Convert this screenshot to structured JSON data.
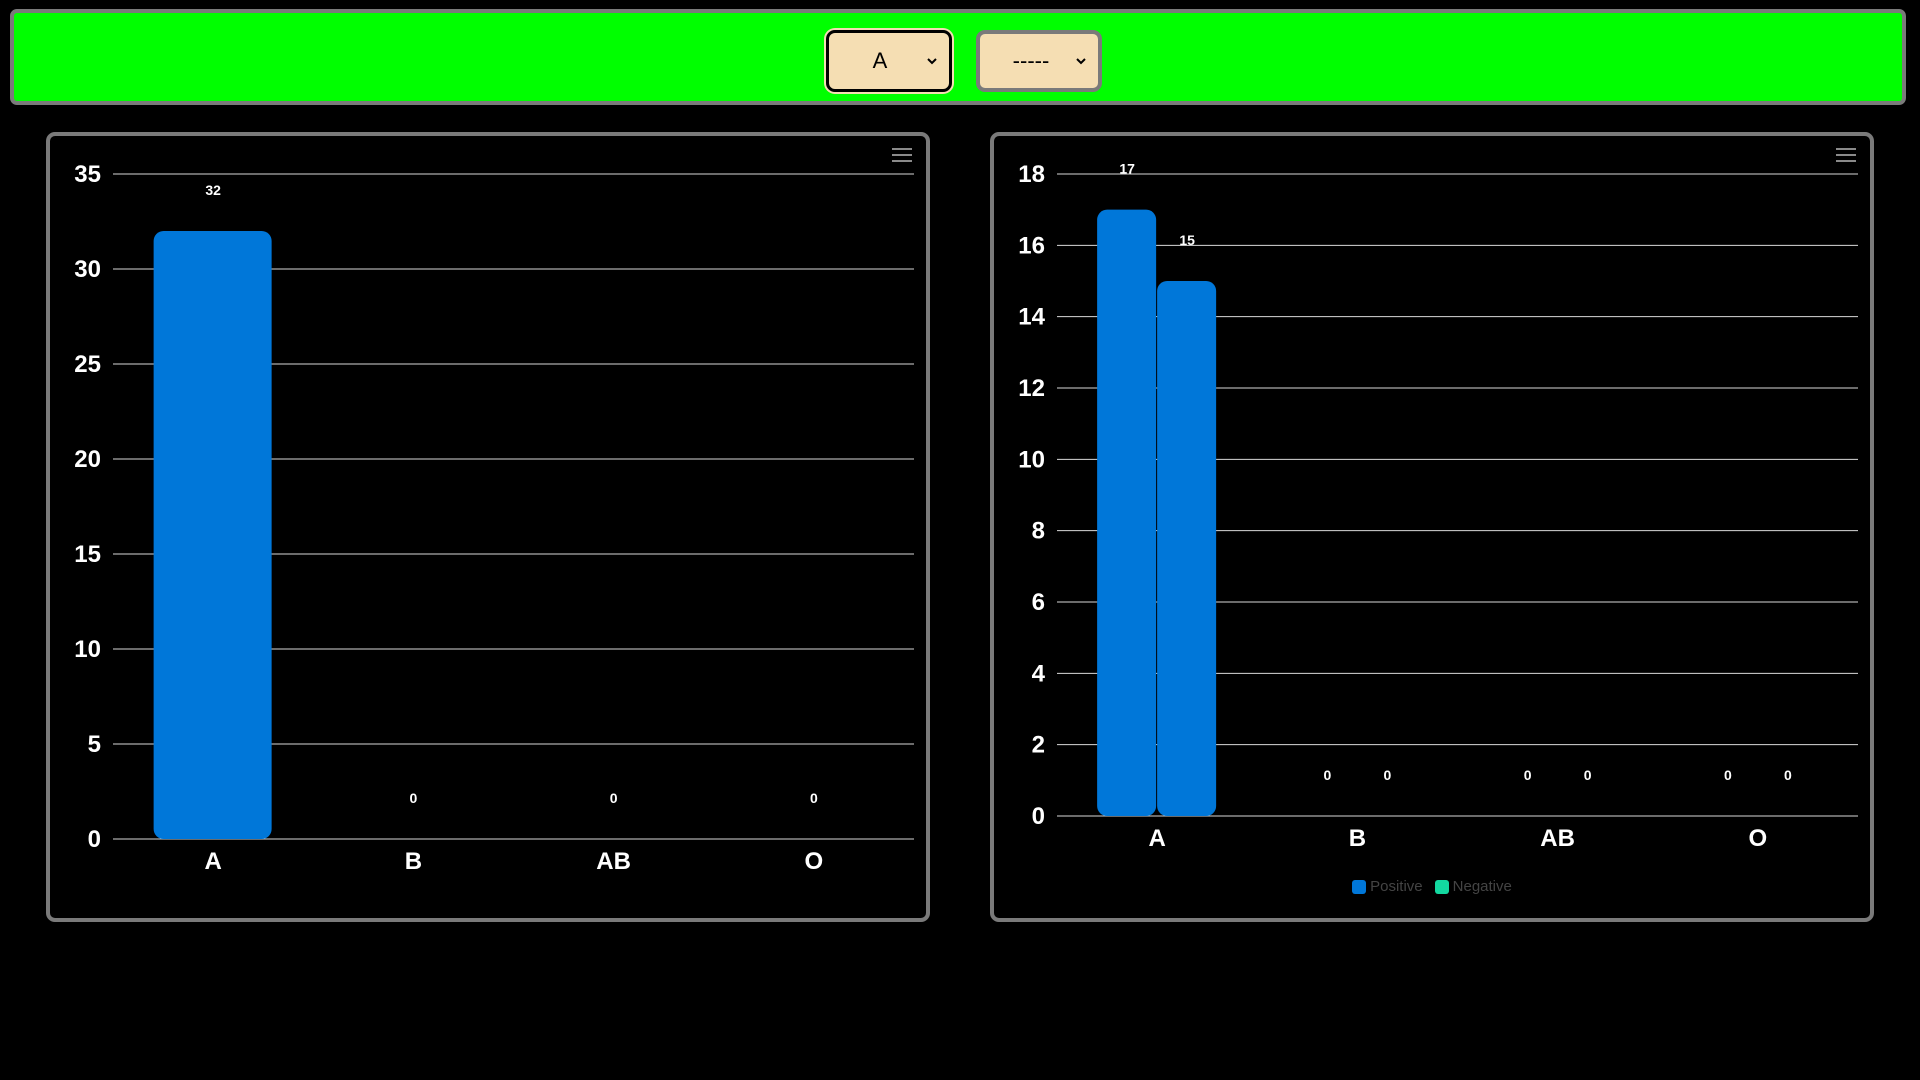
{
  "header": {
    "select_group": {
      "value": "A"
    },
    "select_rh": {
      "value": "-----"
    },
    "bar_color": "#00ff00"
  },
  "colors": {
    "positive": "#0077d9",
    "negative": "#13d8a0",
    "border": "#7a7a7a",
    "select_bg": "#f5deb3"
  },
  "chart_data": [
    {
      "type": "bar",
      "categories": [
        "A",
        "B",
        "AB",
        "O"
      ],
      "series": [
        {
          "values": [
            32,
            0,
            0,
            0
          ],
          "color": "#0077d9"
        }
      ],
      "title": "",
      "xlabel": "",
      "ylabel": "",
      "ylim": [
        0,
        35
      ],
      "yticks": [
        0,
        5,
        10,
        15,
        20,
        25,
        30,
        35
      ],
      "grid": true,
      "data_labels": true
    },
    {
      "type": "bar",
      "categories": [
        "A",
        "B",
        "AB",
        "O"
      ],
      "series": [
        {
          "name": "Positive",
          "values": [
            17,
            0,
            0,
            0
          ],
          "color": "#0077d9"
        },
        {
          "name": "Negative",
          "values": [
            15,
            0,
            0,
            0
          ],
          "color": "#0077d9",
          "legend_color": "#13d8a0"
        }
      ],
      "title": "",
      "xlabel": "",
      "ylabel": "",
      "ylim": [
        0,
        18
      ],
      "yticks": [
        0,
        2,
        4,
        6,
        8,
        10,
        12,
        14,
        16,
        18
      ],
      "grid": true,
      "data_labels": true,
      "legend": "bottom-center"
    }
  ]
}
